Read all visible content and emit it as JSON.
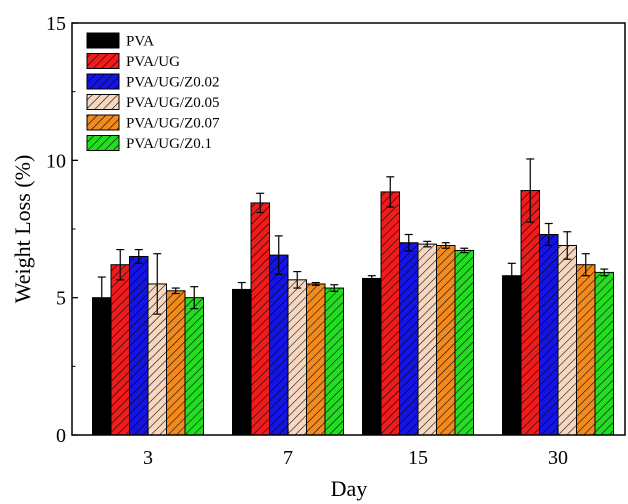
{
  "chart_data": {
    "type": "bar",
    "xlabel": "Day",
    "ylabel": "Weight Loss (%)",
    "categories": [
      "3",
      "7",
      "15",
      "30"
    ],
    "ylim": [
      0,
      15
    ],
    "yticks": [
      "0",
      "5",
      "10",
      "15"
    ],
    "grid": false,
    "legend_position": "top-left",
    "series": [
      {
        "name": "PVA",
        "color": "#000000",
        "pattern": "hatch",
        "values": [
          5.0,
          5.3,
          5.7,
          5.8
        ],
        "errors": [
          0.75,
          0.25,
          0.1,
          0.45
        ]
      },
      {
        "name": "PVA/UG",
        "color": "#ee1c1c",
        "pattern": "hatch",
        "values": [
          6.2,
          8.45,
          8.85,
          8.9
        ],
        "errors": [
          0.55,
          0.35,
          0.55,
          1.15
        ]
      },
      {
        "name": "PVA/UG/Z0.02",
        "color": "#1414e6",
        "pattern": "hatch",
        "values": [
          6.5,
          6.55,
          7.0,
          7.3
        ],
        "errors": [
          0.25,
          0.7,
          0.3,
          0.4
        ]
      },
      {
        "name": "PVA/UG/Z0.05",
        "color": "#f7d7c0",
        "pattern": "hatch",
        "values": [
          5.5,
          5.65,
          6.95,
          6.9
        ],
        "errors": [
          1.1,
          0.3,
          0.1,
          0.5
        ]
      },
      {
        "name": "PVA/UG/Z0.07",
        "color": "#f28a1e",
        "pattern": "hatch",
        "values": [
          5.25,
          5.5,
          6.9,
          6.2
        ],
        "errors": [
          0.1,
          0.05,
          0.1,
          0.4
        ]
      },
      {
        "name": "PVA/UG/Z0.1",
        "color": "#22dd22",
        "pattern": "hatch",
        "values": [
          5.0,
          5.35,
          6.72,
          5.92
        ],
        "errors": [
          0.4,
          0.12,
          0.08,
          0.12
        ]
      }
    ]
  }
}
